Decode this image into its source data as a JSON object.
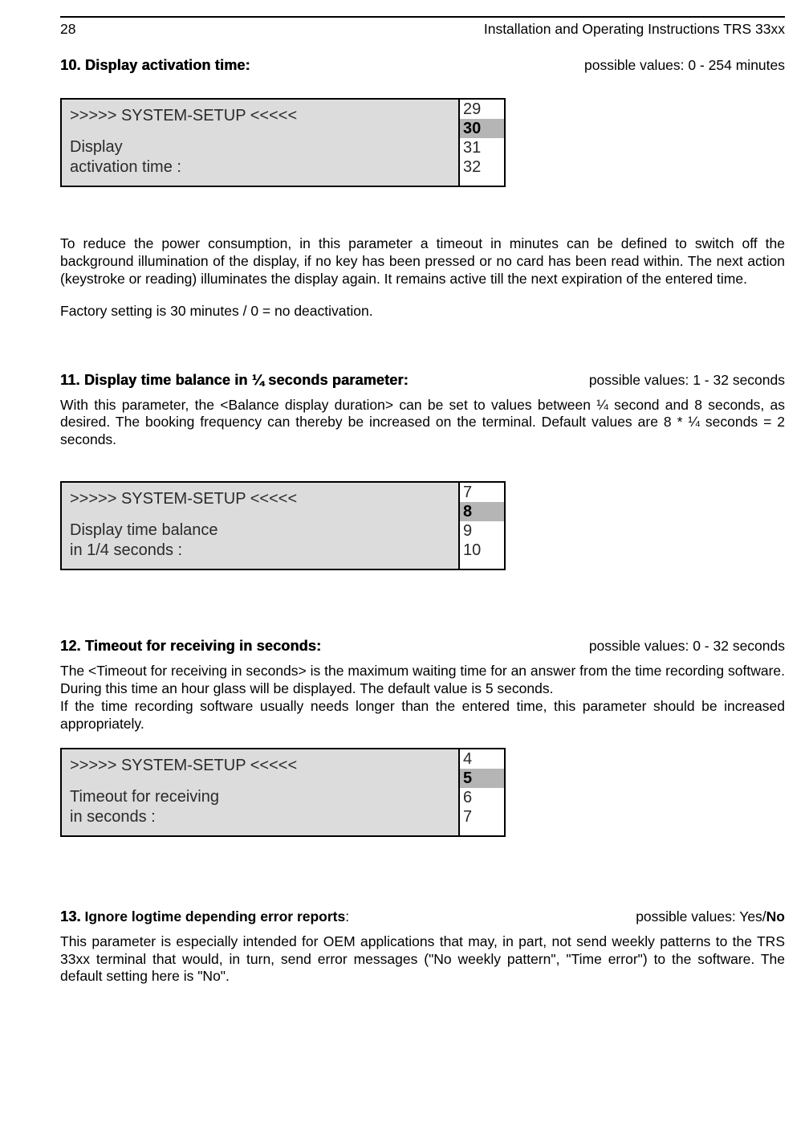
{
  "header": {
    "page_number": "28",
    "doc_title": "Installation  and Operating Instructions TRS 33xx"
  },
  "section10": {
    "title": "10. Display activation time:",
    "possible": "possible values: 0 - 254 minutes",
    "setup_title": ">>>>> SYSTEM-SETUP <<<<<",
    "setup_line1": "Display",
    "setup_line2": "activation time :",
    "options": [
      "29",
      "30",
      "31",
      "32"
    ],
    "selected_index": 1,
    "para1": "To reduce the power consumption, in this parameter a timeout in minutes can be defined to switch off the  background illumination of the display, if no key has been pressed or no card has been read within. The next action (keystroke or reading) illuminates the display again. It remains active till the next expiration of the entered time.",
    "para2": "Factory setting is 30 minutes / 0 = no deactivation."
  },
  "section11": {
    "title": "11. Display time balance in ¼ seconds parameter:",
    "possible": "possible values: 1 - 32 seconds",
    "para1": "With this parameter, the <Balance display duration> can be set to values between ¼ second and 8 seconds, as desired. The booking frequency can thereby be increased on the terminal. Default values are 8 * ¼ seconds = 2 seconds.",
    "setup_title": ">>>>> SYSTEM-SETUP <<<<<",
    "setup_line1": "Display time balance",
    "setup_line2": "in 1/4 seconds :",
    "options": [
      "7",
      "8",
      "9",
      "10"
    ],
    "selected_index": 1
  },
  "section12": {
    "title": "12. Timeout for receiving in seconds:",
    "possible": "possible values: 0 - 32 seconds",
    "para1": "The <Timeout for receiving in seconds> is the maximum waiting time for an answer from the time recording software. During this time an hour glass will be displayed. The default value is 5 seconds.",
    "para2": "If the time recording software usually needs longer than the entered time, this parameter should be increased appropriately.",
    "setup_title": ">>>>> SYSTEM-SETUP <<<<<",
    "setup_line1": "Timeout for receiving",
    "setup_line2": "in seconds :",
    "options": [
      "4",
      "5",
      "6",
      "7"
    ],
    "selected_index": 1
  },
  "section13": {
    "title_prefix": "13.",
    "title_mid": " Ignore logtime depending error reports",
    "title_suffix": ":",
    "possible_prefix": "possible values: Yes/",
    "possible_bold": "No",
    "para1": "This parameter is especially intended for OEM applications that may, in part, not send weekly patterns to the TRS 33xx terminal that would, in turn, send error messages (\"No weekly pattern\", \"Time error\") to the software. The default setting here is \"No\"."
  }
}
